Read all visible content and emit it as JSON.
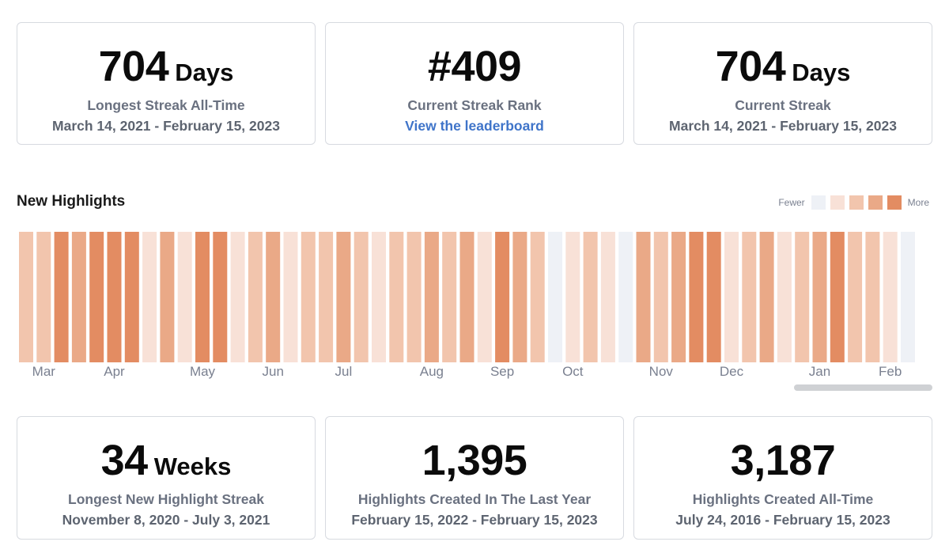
{
  "top_cards": [
    {
      "value": "704",
      "unit": "Days",
      "label": "Longest Streak All-Time",
      "sub": "March 14, 2021 - February 15, 2023"
    },
    {
      "value": "#409",
      "unit": "",
      "label": "Current Streak Rank",
      "link": "View the leaderboard"
    },
    {
      "value": "704",
      "unit": "Days",
      "label": "Current Streak",
      "sub": "March 14, 2021 - February 15, 2023"
    }
  ],
  "highlights": {
    "title": "New Highlights",
    "legend": {
      "fewer": "Fewer",
      "more": "More",
      "colors": [
        "#eef1f6",
        "#f8e1d7",
        "#f2c5ad",
        "#eaa987",
        "#e38c62"
      ]
    }
  },
  "chart_data": {
    "type": "heatmap",
    "levels": [
      2,
      2,
      4,
      3,
      4,
      4,
      4,
      1,
      3,
      1,
      4,
      4,
      1,
      2,
      3,
      1,
      2,
      2,
      3,
      2,
      1,
      2,
      2,
      3,
      2,
      3,
      1,
      4,
      3,
      2,
      0,
      1,
      2,
      1,
      0,
      3,
      2,
      3,
      4,
      4,
      1,
      2,
      3,
      1,
      2,
      3,
      4,
      2,
      2,
      1,
      0
    ],
    "month_labels": [
      {
        "label": "Mar",
        "col": 1
      },
      {
        "label": "Apr",
        "col": 5
      },
      {
        "label": "May",
        "col": 10
      },
      {
        "label": "Jun",
        "col": 14
      },
      {
        "label": "Jul",
        "col": 18
      },
      {
        "label": "Aug",
        "col": 23
      },
      {
        "label": "Sep",
        "col": 27
      },
      {
        "label": "Oct",
        "col": 31
      },
      {
        "label": "Nov",
        "col": 36
      },
      {
        "label": "Dec",
        "col": 40
      },
      {
        "label": "Jan",
        "col": 45
      },
      {
        "label": "Feb",
        "col": 49
      }
    ]
  },
  "bottom_cards": [
    {
      "value": "34",
      "unit": "Weeks",
      "label": "Longest New Highlight Streak",
      "sub": "November 8, 2020 - July 3, 2021"
    },
    {
      "value": "1,395",
      "unit": "",
      "label": "Highlights Created In The Last Year",
      "sub": "February 15, 2022 - February 15, 2023"
    },
    {
      "value": "3,187",
      "unit": "",
      "label": "Highlights Created All-Time",
      "sub": "July 24, 2016 - February 15, 2023"
    }
  ]
}
